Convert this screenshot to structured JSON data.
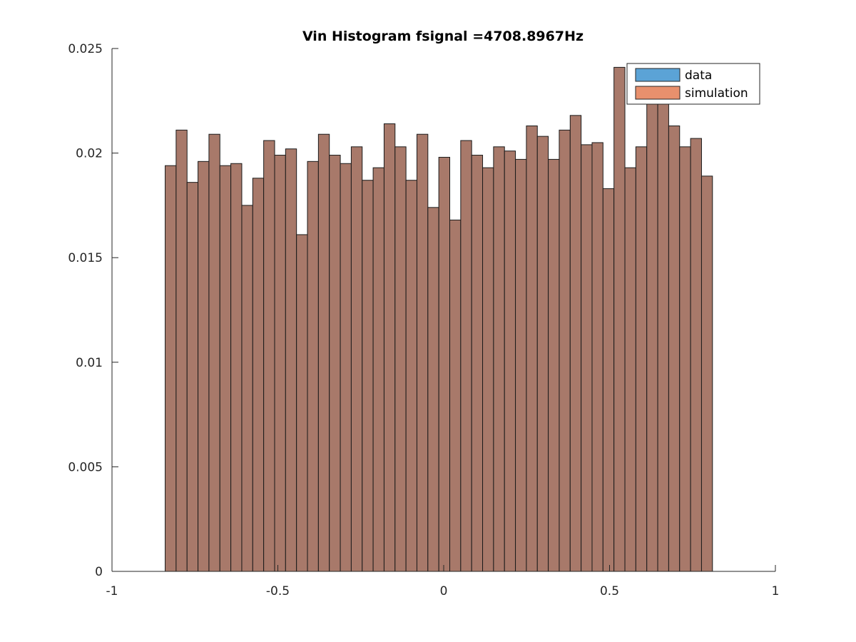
{
  "chart_data": {
    "type": "bar",
    "title": "Vin Histogram fsignal =4708.8967Hz",
    "xlabel": "",
    "ylabel": "",
    "xlim": [
      -1,
      1
    ],
    "ylim": [
      0,
      0.025
    ],
    "x_ticks": [
      -1,
      -0.5,
      0,
      0.5,
      1
    ],
    "x_tick_labels": [
      "-1",
      "-0.5",
      "0",
      "0.5",
      "1"
    ],
    "y_ticks": [
      0,
      0.005,
      0.01,
      0.015,
      0.02,
      0.025
    ],
    "y_tick_labels": [
      "0",
      "0.005",
      "0.01",
      "0.015",
      "0.02",
      "0.025"
    ],
    "grid": false,
    "legend_position": "top-right",
    "bin_edges_start": -0.8397,
    "bin_width": 0.033,
    "series": [
      {
        "name": "data",
        "color": "#5ba3d6",
        "values": [
          0.0194,
          0.0211,
          0.0186,
          0.0196,
          0.0209,
          0.0194,
          0.0195,
          0.0175,
          0.0188,
          0.0206,
          0.0199,
          0.0202,
          0.0161,
          0.0196,
          0.0209,
          0.0199,
          0.0195,
          0.0203,
          0.0187,
          0.0193,
          0.0214,
          0.0203,
          0.0187,
          0.0209,
          0.0174,
          0.0198,
          0.0168,
          0.0206,
          0.0199,
          0.0193,
          0.0203,
          0.0201,
          0.0197,
          0.0213,
          0.0208,
          0.0197,
          0.0211,
          0.0218,
          0.0204,
          0.0205,
          0.0183,
          0.0241,
          0.0193,
          0.0203,
          0.0234,
          0.0228,
          0.0213,
          0.0203,
          0.0207,
          0.0189
        ]
      },
      {
        "name": "simulation",
        "color": "#e8906d",
        "values": [
          0.0194,
          0.0211,
          0.0186,
          0.0196,
          0.0209,
          0.0194,
          0.0195,
          0.0175,
          0.0188,
          0.0206,
          0.0199,
          0.0202,
          0.0161,
          0.0196,
          0.0209,
          0.0199,
          0.0195,
          0.0203,
          0.0187,
          0.0193,
          0.0214,
          0.0203,
          0.0187,
          0.0209,
          0.0174,
          0.0198,
          0.0168,
          0.0206,
          0.0199,
          0.0193,
          0.0203,
          0.0201,
          0.0197,
          0.0213,
          0.0208,
          0.0197,
          0.0211,
          0.0218,
          0.0204,
          0.0205,
          0.0183,
          0.0241,
          0.0193,
          0.0203,
          0.0234,
          0.0228,
          0.0213,
          0.0203,
          0.0207,
          0.0189
        ]
      }
    ],
    "overlap_color": "#a8796a"
  }
}
